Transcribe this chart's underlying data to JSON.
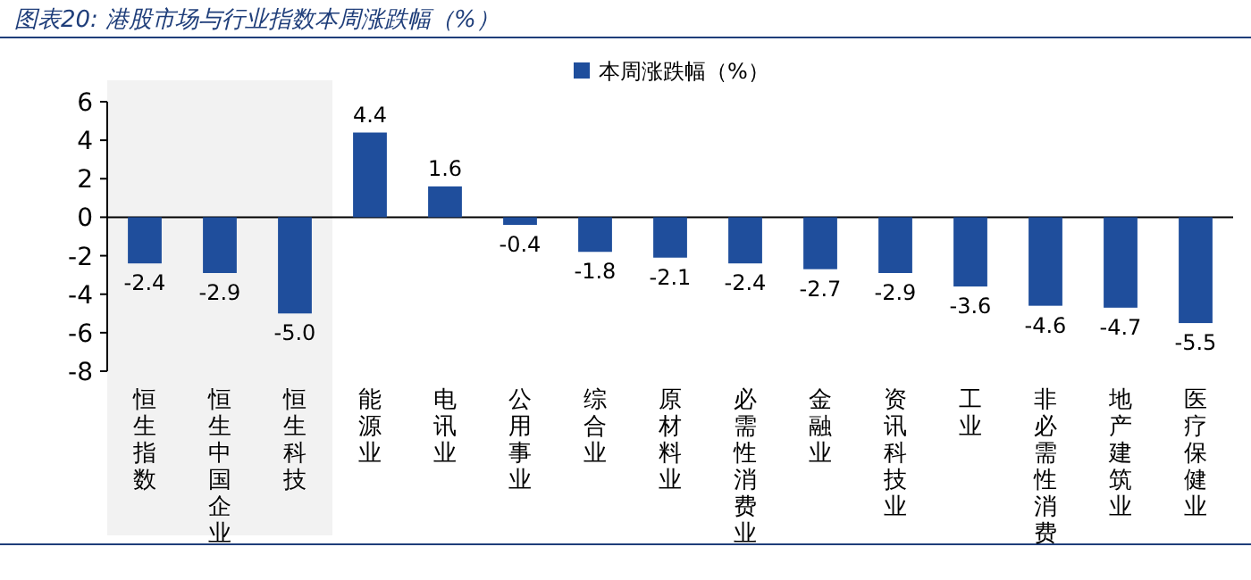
{
  "chart_data": {
    "type": "bar",
    "title": "图表20: 港股市场与行业指数本周涨跌幅（%）",
    "categories": [
      "恒生指数",
      "恒生中国企业",
      "恒生科技",
      "能源业",
      "电讯业",
      "公用事业",
      "综合业",
      "原材料业",
      "必需性消费业",
      "金融业",
      "资讯科技业",
      "工业",
      "非必需性消费",
      "地产建筑业",
      "医疗保健业"
    ],
    "series": [
      {
        "name": "本周涨跌幅（%）",
        "color": "#1f4e9c",
        "values": [
          -2.4,
          -2.9,
          -5.0,
          4.4,
          1.6,
          -0.4,
          -1.8,
          -2.1,
          -2.4,
          -2.7,
          -2.9,
          -3.6,
          -4.6,
          -4.7,
          -5.5
        ],
        "value_labels": [
          "-2.4",
          "-2.9",
          "-5.0",
          "4.4",
          "1.6",
          "-0.4",
          "-1.8",
          "-2.1",
          "-2.4",
          "-2.7",
          "-2.9",
          "-3.6",
          "-4.6",
          "-4.7",
          "-5.5"
        ]
      }
    ],
    "ylim": [
      -8,
      6
    ],
    "yticks": [
      -8,
      -6,
      -4,
      -2,
      0,
      2,
      4,
      6
    ],
    "bands": [
      {
        "axis": "x",
        "from": "恒生指数",
        "to": "恒生科技",
        "color": "#f2f2f2"
      }
    ],
    "legend": "top"
  }
}
